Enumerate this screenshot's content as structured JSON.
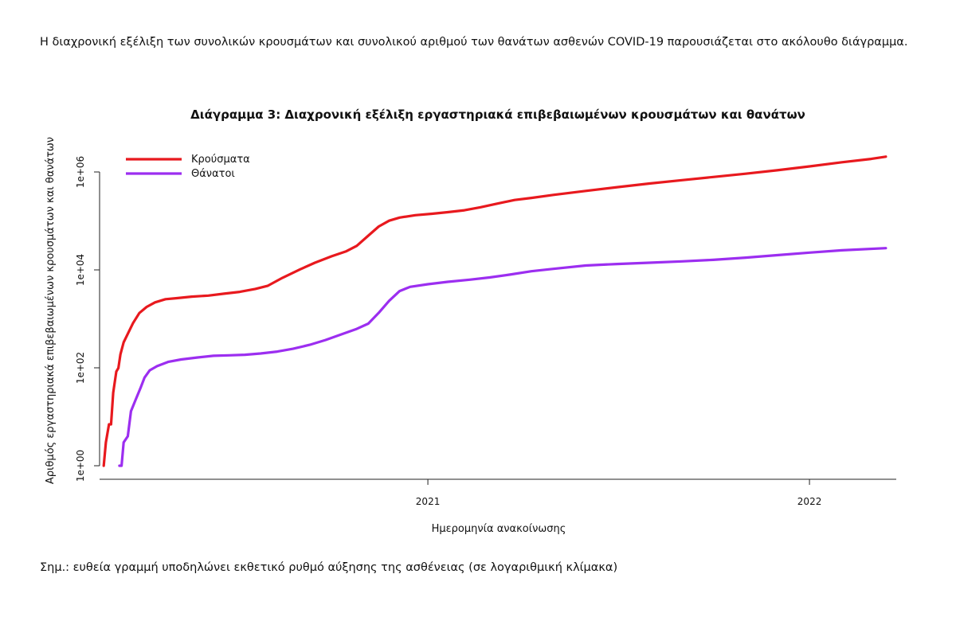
{
  "intro_text": "Η διαχρονική εξέλιξη των συνολικών κρουσμάτων και συνολικού αριθμού των θανάτων ασθενών COVID-19 παρουσιάζεται στο ακόλουθο διάγραμμα.",
  "note_text": "Σημ.: ευθεία γραμμή υποδηλώνει εκθετικό ρυθμό αύξησης της ασθένειας (σε λογαριθμική κλίμακα)",
  "chart_data": {
    "type": "line",
    "title": "Διάγραμμα 3: Διαχρονική εξέλιξη εργαστηριακά επιβεβαιωμένων κρουσμάτων και θανάτων",
    "xlabel": "Ημερομηνία ανακοίνωσης",
    "ylabel": "Αριθμός εργαστηριακά επιβεβαιωμένων κρουσμάτων και θανάτων",
    "x_scale": "time",
    "y_scale": "log10",
    "xlim": [
      "2020-02-22",
      "2022-03-25"
    ],
    "ylim": [
      1,
      3000000
    ],
    "x_ticks": [
      {
        "value": "2021-01-01",
        "label": "2021"
      },
      {
        "value": "2022-01-01",
        "label": "2022"
      }
    ],
    "y_ticks": [
      {
        "value": 1,
        "label": "1e+00"
      },
      {
        "value": 100,
        "label": "1e+02"
      },
      {
        "value": 10000,
        "label": "1e+04"
      },
      {
        "value": 1000000,
        "label": "1e+06"
      }
    ],
    "grid": false,
    "legend_position": "top-left",
    "series": [
      {
        "name": "Κρούσματα",
        "color": "#e8191e",
        "points": [
          [
            "2020-02-26",
            1
          ],
          [
            "2020-02-28",
            3
          ],
          [
            "2020-03-02",
            7
          ],
          [
            "2020-03-04",
            7
          ],
          [
            "2020-03-06",
            31
          ],
          [
            "2020-03-09",
            84
          ],
          [
            "2020-03-11",
            99
          ],
          [
            "2020-03-13",
            190
          ],
          [
            "2020-03-16",
            331
          ],
          [
            "2020-03-20",
            495
          ],
          [
            "2020-03-25",
            821
          ],
          [
            "2020-03-31",
            1314
          ],
          [
            "2020-04-07",
            1755
          ],
          [
            "2020-04-15",
            2170
          ],
          [
            "2020-04-25",
            2517
          ],
          [
            "2020-05-05",
            2642
          ],
          [
            "2020-05-20",
            2840
          ],
          [
            "2020-06-05",
            2980
          ],
          [
            "2020-06-20",
            3260
          ],
          [
            "2020-07-05",
            3560
          ],
          [
            "2020-07-20",
            4080
          ],
          [
            "2020-08-01",
            4740
          ],
          [
            "2020-08-15",
            6900
          ],
          [
            "2020-09-01",
            10300
          ],
          [
            "2020-09-15",
            14000
          ],
          [
            "2020-10-01",
            19000
          ],
          [
            "2020-10-15",
            24000
          ],
          [
            "2020-10-25",
            31000
          ],
          [
            "2020-11-05",
            50000
          ],
          [
            "2020-11-15",
            77000
          ],
          [
            "2020-11-25",
            101000
          ],
          [
            "2020-12-05",
            117000
          ],
          [
            "2020-12-20",
            131000
          ],
          [
            "2021-01-05",
            140000
          ],
          [
            "2021-01-20",
            151000
          ],
          [
            "2021-02-05",
            165000
          ],
          [
            "2021-02-20",
            190000
          ],
          [
            "2021-03-10",
            230000
          ],
          [
            "2021-03-25",
            268000
          ],
          [
            "2021-04-10",
            295000
          ],
          [
            "2021-05-01",
            340000
          ],
          [
            "2021-06-01",
            410000
          ],
          [
            "2021-07-01",
            490000
          ],
          [
            "2021-08-01",
            580000
          ],
          [
            "2021-09-01",
            680000
          ],
          [
            "2021-10-01",
            790000
          ],
          [
            "2021-11-01",
            920000
          ],
          [
            "2021-12-01",
            1080000
          ],
          [
            "2022-01-01",
            1300000
          ],
          [
            "2022-02-01",
            1580000
          ],
          [
            "2022-03-01",
            1850000
          ],
          [
            "2022-03-15",
            2050000
          ]
        ]
      },
      {
        "name": "Θάνατοι",
        "color": "#9c2ef0",
        "points": [
          [
            "2020-03-12",
            1
          ],
          [
            "2020-03-14",
            1
          ],
          [
            "2020-03-16",
            3
          ],
          [
            "2020-03-20",
            4
          ],
          [
            "2020-03-23",
            13
          ],
          [
            "2020-03-27",
            21
          ],
          [
            "2020-04-01",
            38
          ],
          [
            "2020-04-05",
            63
          ],
          [
            "2020-04-10",
            89
          ],
          [
            "2020-04-17",
            108
          ],
          [
            "2020-04-28",
            133
          ],
          [
            "2020-05-10",
            148
          ],
          [
            "2020-05-25",
            162
          ],
          [
            "2020-06-10",
            176
          ],
          [
            "2020-06-25",
            180
          ],
          [
            "2020-07-10",
            185
          ],
          [
            "2020-07-25",
            196
          ],
          [
            "2020-08-10",
            215
          ],
          [
            "2020-08-25",
            245
          ],
          [
            "2020-09-10",
            295
          ],
          [
            "2020-09-25",
            370
          ],
          [
            "2020-10-10",
            480
          ],
          [
            "2020-10-25",
            625
          ],
          [
            "2020-11-05",
            800
          ],
          [
            "2020-11-15",
            1330
          ],
          [
            "2020-11-25",
            2340
          ],
          [
            "2020-12-05",
            3700
          ],
          [
            "2020-12-15",
            4500
          ],
          [
            "2021-01-01",
            5100
          ],
          [
            "2021-01-20",
            5700
          ],
          [
            "2021-02-10",
            6300
          ],
          [
            "2021-03-01",
            7000
          ],
          [
            "2021-03-20",
            8000
          ],
          [
            "2021-04-10",
            9400
          ],
          [
            "2021-05-01",
            10500
          ],
          [
            "2021-06-01",
            12300
          ],
          [
            "2021-07-01",
            13200
          ],
          [
            "2021-08-01",
            14000
          ],
          [
            "2021-09-01",
            14900
          ],
          [
            "2021-10-01",
            16000
          ],
          [
            "2021-11-01",
            17800
          ],
          [
            "2021-12-01",
            20000
          ],
          [
            "2022-01-01",
            22500
          ],
          [
            "2022-02-01",
            25100
          ],
          [
            "2022-03-15",
            27800
          ]
        ]
      }
    ]
  }
}
